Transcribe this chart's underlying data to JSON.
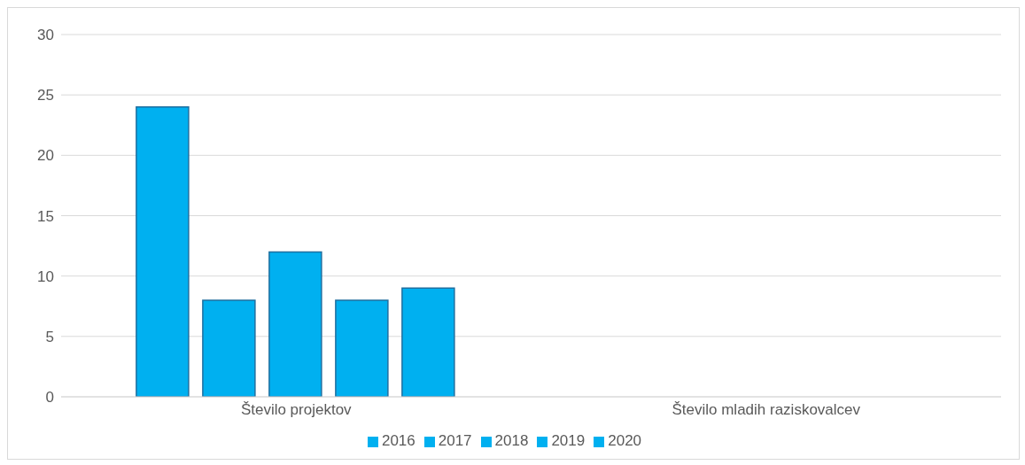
{
  "chart_data": {
    "type": "bar",
    "categories": [
      "Število projektov",
      "Število mladih raziskovalcev"
    ],
    "series": [
      {
        "name": "2016",
        "color": "#00b0f0",
        "values": [
          24,
          null
        ]
      },
      {
        "name": "2017",
        "color": "#00b0f0",
        "values": [
          8,
          null
        ]
      },
      {
        "name": "2018",
        "color": "#00b0f0",
        "values": [
          12,
          null
        ]
      },
      {
        "name": "2019",
        "color": "#00b0f0",
        "values": [
          8,
          null
        ]
      },
      {
        "name": "2020",
        "color": "#00b0f0",
        "values": [
          9,
          null
        ]
      }
    ],
    "ylim": [
      0,
      30
    ],
    "yticks": [
      0,
      5,
      10,
      15,
      20,
      25,
      30
    ],
    "grid": "y",
    "legend": "bottom"
  }
}
